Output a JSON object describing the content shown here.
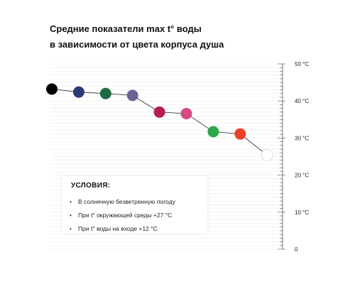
{
  "title": {
    "line1": "Средние показатели max t° воды",
    "line2": "в зависимости от цвета корпуса душа"
  },
  "conditions": {
    "heading": "УСЛОВИЯ:",
    "items": [
      "В солнечную безветренную погоду",
      "При t° окружающей среды +27 °C",
      "При t° воды на входе +12 °C"
    ]
  },
  "chart_data": {
    "type": "line",
    "title": "Средние показатели max t° воды в зависимости от цвета корпуса душа",
    "ylim": [
      0,
      50
    ],
    "yticks": [
      {
        "value": 50,
        "label": "50 °C"
      },
      {
        "value": 40,
        "label": "40 °C"
      },
      {
        "value": 30,
        "label": "30 °C"
      },
      {
        "value": 20,
        "label": "20 °C"
      },
      {
        "value": 10,
        "label": "10 °C"
      },
      {
        "value": 0,
        "label": "0"
      }
    ],
    "grid": true,
    "points": [
      {
        "index": 0,
        "value": 43.2,
        "color": "#000000"
      },
      {
        "index": 1,
        "value": 42.4,
        "color": "#2e3a78"
      },
      {
        "index": 2,
        "value": 42.0,
        "color": "#1c6b45"
      },
      {
        "index": 3,
        "value": 41.5,
        "color": "#6a6496"
      },
      {
        "index": 4,
        "value": 37.0,
        "color": "#b81e48"
      },
      {
        "index": 5,
        "value": 36.6,
        "color": "#d64a86"
      },
      {
        "index": 6,
        "value": 31.7,
        "color": "#2ea84a"
      },
      {
        "index": 7,
        "value": 31.1,
        "color": "#ee4028"
      },
      {
        "index": 8,
        "value": 25.4,
        "color": "#ffffff"
      }
    ]
  }
}
